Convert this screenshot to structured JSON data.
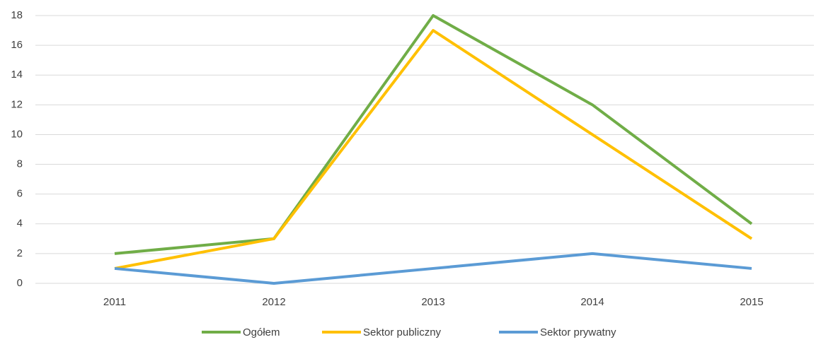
{
  "chart_data": {
    "type": "line",
    "categories": [
      "2011",
      "2012",
      "2013",
      "2014",
      "2015"
    ],
    "series": [
      {
        "name": "Ogółem",
        "color": "#70ad47",
        "values": [
          2,
          3,
          18,
          12,
          4
        ]
      },
      {
        "name": "Sektor publiczny",
        "color": "#ffc000",
        "values": [
          1,
          3,
          17,
          10,
          3
        ]
      },
      {
        "name": "Sektor prywatny",
        "color": "#5b9bd5",
        "values": [
          1,
          0,
          1,
          2,
          1
        ]
      }
    ],
    "ylim": [
      0,
      18
    ],
    "yticks": [
      0,
      2,
      4,
      6,
      8,
      10,
      12,
      14,
      16,
      18
    ],
    "grid": true,
    "legend": "bottom"
  }
}
